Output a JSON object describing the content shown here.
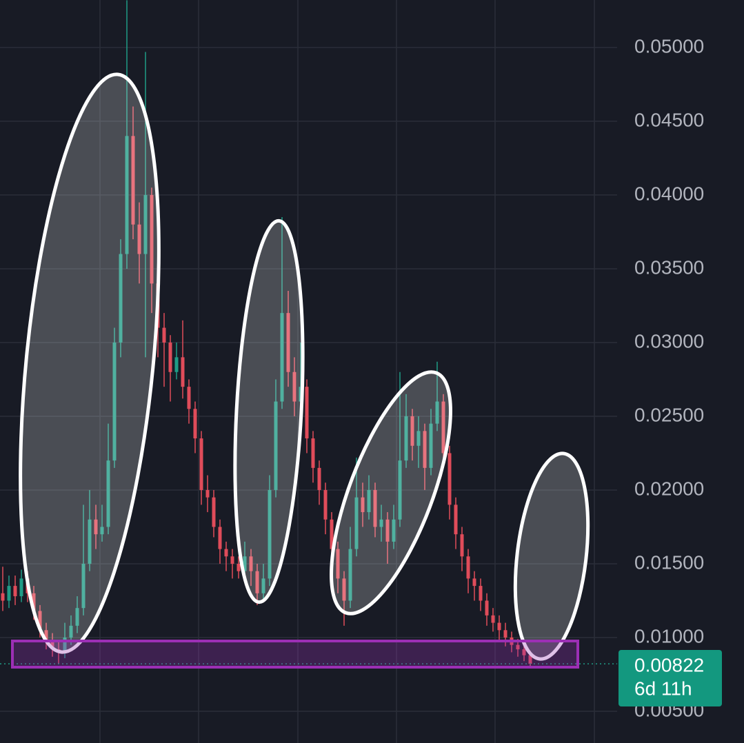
{
  "chart_data": {
    "type": "candlestick",
    "ylim": [
      0.00285,
      0.05322
    ],
    "yticks": [
      {
        "value": 0.005,
        "label": "0.00500"
      },
      {
        "value": 0.01,
        "label": "0.01000"
      },
      {
        "value": 0.015,
        "label": "0.01500"
      },
      {
        "value": 0.02,
        "label": "0.02000"
      },
      {
        "value": 0.025,
        "label": "0.02500"
      },
      {
        "value": 0.03,
        "label": "0.03000"
      },
      {
        "value": 0.035,
        "label": "0.03500"
      },
      {
        "value": 0.04,
        "label": "0.04000"
      },
      {
        "value": 0.045,
        "label": "0.04500"
      },
      {
        "value": 0.05,
        "label": "0.05000"
      }
    ],
    "grid": true,
    "up_color": "#1f9c86",
    "down_color": "#e04c5a",
    "open": [
      0.013,
      0.0125,
      0.0135,
      0.0128,
      0.014,
      0.013,
      0.0118,
      0.0105,
      0.0098,
      0.0092,
      0.009,
      0.01,
      0.0108,
      0.012,
      0.015,
      0.018,
      0.017,
      0.0175,
      0.022,
      0.03,
      0.036,
      0.044,
      0.038,
      0.036,
      0.04,
      0.034,
      0.031,
      0.03,
      0.028,
      0.029,
      0.027,
      0.0255,
      0.0235,
      0.02,
      0.0195,
      0.0175,
      0.016,
      0.0155,
      0.015,
      0.0145,
      0.0155,
      0.0145,
      0.013,
      0.014,
      0.02,
      0.026,
      0.032,
      0.028,
      0.026,
      0.027,
      0.0235,
      0.0215,
      0.02,
      0.018,
      0.016,
      0.014,
      0.0125,
      0.016,
      0.0195,
      0.0185,
      0.02,
      0.0175,
      0.018,
      0.0165,
      0.018,
      0.022,
      0.025,
      0.023,
      0.024,
      0.0215,
      0.0245,
      0.026,
      0.0225,
      0.019,
      0.017,
      0.0155,
      0.014,
      0.0135,
      0.0125,
      0.0115,
      0.011,
      0.0105,
      0.01,
      0.0095,
      0.0092,
      0.0088
    ],
    "high": [
      0.0148,
      0.0142,
      0.0142,
      0.0146,
      0.0145,
      0.0135,
      0.0122,
      0.011,
      0.0103,
      0.0097,
      0.011,
      0.0115,
      0.0128,
      0.019,
      0.02,
      0.019,
      0.019,
      0.0245,
      0.031,
      0.037,
      0.0532,
      0.046,
      0.0395,
      0.0497,
      0.0405,
      0.0345,
      0.032,
      0.0305,
      0.03,
      0.0315,
      0.0275,
      0.026,
      0.024,
      0.021,
      0.02,
      0.018,
      0.0165,
      0.016,
      0.0155,
      0.0165,
      0.016,
      0.015,
      0.015,
      0.021,
      0.0275,
      0.0385,
      0.0335,
      0.029,
      0.03,
      0.0275,
      0.024,
      0.022,
      0.0205,
      0.0185,
      0.0165,
      0.0145,
      0.0175,
      0.0222,
      0.0205,
      0.021,
      0.0205,
      0.019,
      0.0185,
      0.019,
      0.028,
      0.0265,
      0.0255,
      0.025,
      0.0245,
      0.0255,
      0.0287,
      0.0265,
      0.023,
      0.0195,
      0.0175,
      0.016,
      0.0145,
      0.014,
      0.013,
      0.012,
      0.0115,
      0.011,
      0.0104,
      0.0099,
      0.0096,
      0.0091
    ],
    "low": [
      0.0118,
      0.012,
      0.0122,
      0.0124,
      0.0124,
      0.0112,
      0.01,
      0.0092,
      0.0087,
      0.0082,
      0.0086,
      0.0095,
      0.0103,
      0.0115,
      0.0145,
      0.016,
      0.0165,
      0.017,
      0.0215,
      0.029,
      0.035,
      0.037,
      0.034,
      0.029,
      0.032,
      0.029,
      0.027,
      0.026,
      0.0275,
      0.0262,
      0.0245,
      0.0225,
      0.019,
      0.0185,
      0.0168,
      0.015,
      0.0145,
      0.014,
      0.014,
      0.014,
      0.0135,
      0.0122,
      0.0125,
      0.0135,
      0.0195,
      0.0255,
      0.027,
      0.025,
      0.025,
      0.0225,
      0.0205,
      0.019,
      0.017,
      0.015,
      0.013,
      0.0108,
      0.012,
      0.0155,
      0.0175,
      0.018,
      0.0168,
      0.0165,
      0.015,
      0.016,
      0.0175,
      0.0215,
      0.022,
      0.0215,
      0.02,
      0.021,
      0.024,
      0.0215,
      0.018,
      0.016,
      0.0145,
      0.013,
      0.0125,
      0.0118,
      0.0108,
      0.0104,
      0.0098,
      0.0094,
      0.009,
      0.0087,
      0.0084,
      0.008
    ],
    "close": [
      0.0125,
      0.0135,
      0.0128,
      0.014,
      0.013,
      0.0118,
      0.0105,
      0.0098,
      0.0092,
      0.009,
      0.01,
      0.0108,
      0.012,
      0.015,
      0.018,
      0.017,
      0.0175,
      0.022,
      0.03,
      0.036,
      0.044,
      0.038,
      0.036,
      0.04,
      0.034,
      0.031,
      0.03,
      0.028,
      0.029,
      0.027,
      0.0255,
      0.0235,
      0.02,
      0.0195,
      0.0175,
      0.016,
      0.0155,
      0.015,
      0.0145,
      0.0155,
      0.0145,
      0.013,
      0.014,
      0.02,
      0.026,
      0.032,
      0.028,
      0.026,
      0.027,
      0.0235,
      0.0215,
      0.02,
      0.018,
      0.016,
      0.014,
      0.0125,
      0.016,
      0.0195,
      0.0185,
      0.02,
      0.0175,
      0.018,
      0.0165,
      0.018,
      0.022,
      0.025,
      0.023,
      0.024,
      0.0215,
      0.0245,
      0.026,
      0.0225,
      0.019,
      0.017,
      0.0155,
      0.014,
      0.0135,
      0.0125,
      0.0115,
      0.011,
      0.0105,
      0.01,
      0.0095,
      0.0092,
      0.0088,
      0.00822
    ],
    "last_price": {
      "value": 0.00822,
      "label": "0.00822"
    },
    "countdown": "6d 11h"
  }
}
